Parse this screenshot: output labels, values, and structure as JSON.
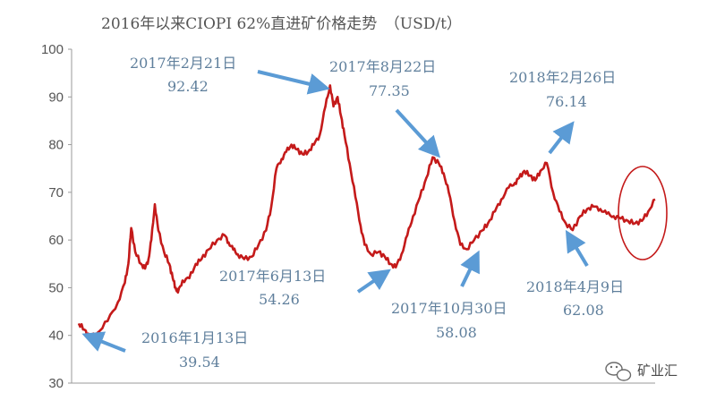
{
  "chart_data": {
    "type": "line",
    "title": "2016年以来CIOPI 62%直进矿价格走势　（USD/t）",
    "ylim": [
      30,
      100
    ],
    "yticks": [
      30,
      40,
      50,
      60,
      70,
      80,
      90,
      100
    ],
    "ytick_labels": [
      "30",
      "40",
      "50",
      "60",
      "70",
      "80",
      "90",
      "100"
    ],
    "grid": false,
    "series_color": "#c41a1a",
    "annotation_color": "#5f7f9c",
    "arrow_color": "#5b9bd5",
    "highlight_color": "#c41a1a",
    "x": [
      0.0,
      0.01,
      0.019,
      0.032,
      0.05,
      0.068,
      0.08,
      0.086,
      0.091,
      0.098,
      0.108,
      0.115,
      0.121,
      0.126,
      0.132,
      0.138,
      0.148,
      0.157,
      0.163,
      0.168,
      0.172,
      0.18,
      0.192,
      0.203,
      0.213,
      0.225,
      0.24,
      0.253,
      0.26,
      0.268,
      0.276,
      0.287,
      0.3,
      0.312,
      0.325,
      0.334,
      0.343,
      0.352,
      0.36,
      0.369,
      0.378,
      0.388,
      0.398,
      0.408,
      0.418,
      0.428,
      0.436,
      0.442,
      0.449,
      0.455,
      0.461,
      0.47,
      0.48,
      0.489,
      0.496,
      0.507,
      0.52,
      0.531,
      0.541,
      0.55,
      0.56,
      0.57,
      0.58,
      0.592,
      0.603,
      0.614,
      0.625,
      0.633,
      0.642,
      0.652,
      0.662,
      0.673,
      0.686,
      0.7,
      0.71,
      0.722,
      0.733,
      0.746,
      0.757,
      0.764,
      0.773,
      0.783,
      0.792,
      0.801,
      0.812,
      0.823,
      0.834,
      0.845,
      0.857,
      0.87,
      0.882,
      0.893,
      0.905,
      0.916,
      0.928,
      0.94,
      0.953,
      0.965,
      0.977,
      0.988,
      1.0
    ],
    "values": [
      42.5,
      41.2,
      39.54,
      40.5,
      43.0,
      47.0,
      51.0,
      55.0,
      62.5,
      57.5,
      55.0,
      54.0,
      56.0,
      60.0,
      67.5,
      62.0,
      57.5,
      55.0,
      52.0,
      50.0,
      49.0,
      51.5,
      52.0,
      55.0,
      56.0,
      58.0,
      60.0,
      61.0,
      59.5,
      58.0,
      57.0,
      56.0,
      56.5,
      59.0,
      62.0,
      67.0,
      75.0,
      77.0,
      78.5,
      80.0,
      79.0,
      78.0,
      78.5,
      80.0,
      82.0,
      88.0,
      92.42,
      88.0,
      90.0,
      86.0,
      82.0,
      76.0,
      69.0,
      63.0,
      59.0,
      57.0,
      57.5,
      56.5,
      55.0,
      54.26,
      57.0,
      61.0,
      65.0,
      69.0,
      73.0,
      77.35,
      76.0,
      74.0,
      70.0,
      64.0,
      59.0,
      58.08,
      60.0,
      62.0,
      63.5,
      66.0,
      68.5,
      71.0,
      72.0,
      73.0,
      74.5,
      73.5,
      72.5,
      74.5,
      76.14,
      70.0,
      66.0,
      63.5,
      62.08,
      65.0,
      66.5,
      67.0,
      66.5,
      65.5,
      65.0,
      64.5,
      64.0,
      63.5,
      64.0,
      66.0,
      68.5
    ]
  },
  "annotations": [
    {
      "date": "2016年1月13日",
      "value": "39.54"
    },
    {
      "date": "2017年2月21日",
      "value": "92.42"
    },
    {
      "date": "2017年6月13日",
      "value": "54.26"
    },
    {
      "date": "2017年8月22日",
      "value": "77.35"
    },
    {
      "date": "2017年10月30日",
      "value": "58.08"
    },
    {
      "date": "2018年2月26日",
      "value": "76.14"
    },
    {
      "date": "2018年4月9日",
      "value": "62.08"
    }
  ],
  "watermark": {
    "icon": "wechat-icon",
    "text": "矿业汇"
  }
}
